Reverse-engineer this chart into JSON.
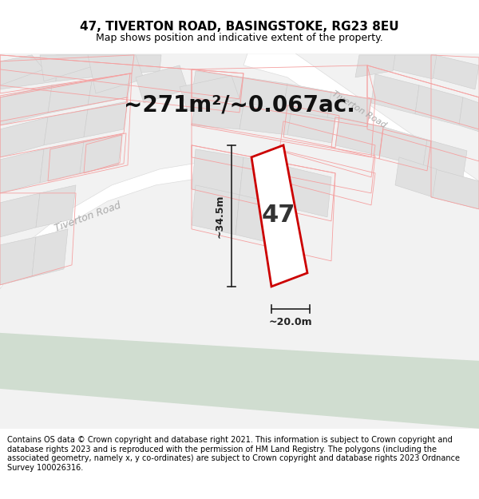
{
  "title": "47, TIVERTON ROAD, BASINGSTOKE, RG23 8EU",
  "subtitle": "Map shows position and indicative extent of the property.",
  "area_text": "~271m²/~0.067ac.",
  "property_number": "47",
  "dim_width": "~20.0m",
  "dim_height": "~34.5m",
  "footer": "Contains OS data © Crown copyright and database right 2021. This information is subject to Crown copyright and database rights 2023 and is reproduced with the permission of HM Land Registry. The polygons (including the associated geometry, namely x, y co-ordinates) are subject to Crown copyright and database rights 2023 Ordnance Survey 100026316.",
  "bg_map": "#f2f2f2",
  "block_fill": "#e0e0e0",
  "block_edge": "#cccccc",
  "road_fill": "#ffffff",
  "parcel_edge": "#f5a0a0",
  "parcel_fill": "#fafafa",
  "property_fill": "#ffffff",
  "property_edge": "#cc0000",
  "green_fill": "#d0ddd0",
  "dim_line_color": "#222222",
  "road_label_color": "#aaaaaa",
  "title_fontsize": 11,
  "subtitle_fontsize": 9,
  "area_fontsize": 20,
  "number_fontsize": 22,
  "dim_fontsize": 9,
  "road_label_fontsize": 9,
  "footer_fontsize": 7
}
